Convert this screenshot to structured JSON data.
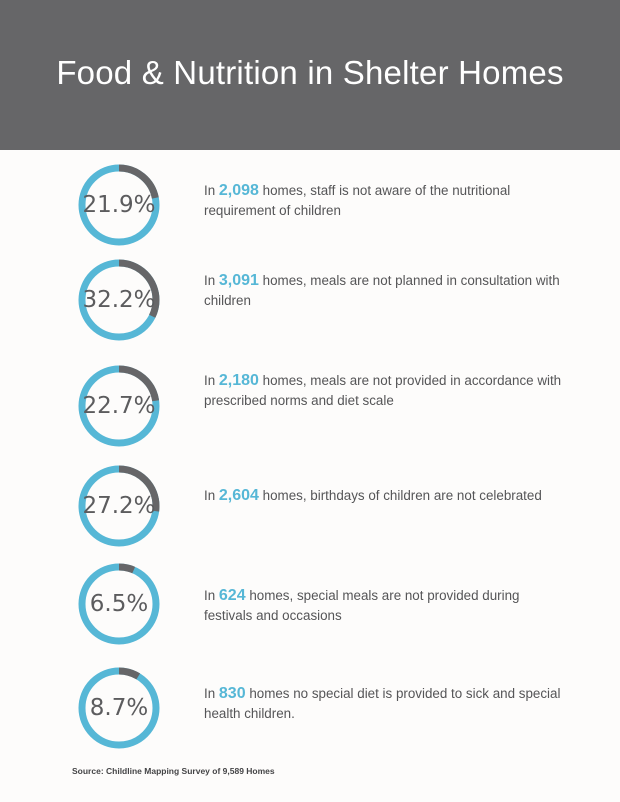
{
  "title": "Food & Nutrition in Shelter Homes",
  "source": "Source: Childline Mapping Survey of 9,589 Homes",
  "colors": {
    "ring": "#56b7d6",
    "ring_remainder": "#666668",
    "header": "#666668",
    "highlight": "#56b7d6"
  },
  "chart_data": {
    "type": "pie",
    "style": "donut",
    "items": [
      {
        "percent": 21.9,
        "label": "21.9%",
        "count": "2,098",
        "prefix": "In ",
        "text": " homes, staff is not aware of the nutritional requirement of children"
      },
      {
        "percent": 32.2,
        "label": "32.2%",
        "count": "3,091",
        "prefix": "In ",
        "text": " homes, meals are not planned in consultation with children"
      },
      {
        "percent": 22.7,
        "label": "22.7%",
        "count": "2,180",
        "prefix": "In ",
        "text": " homes, meals are not provided in accordance with prescribed norms and diet scale"
      },
      {
        "percent": 27.2,
        "label": "27.2%",
        "count": "2,604",
        "prefix": "In ",
        "text": " homes, birthdays of children are not celebrated"
      },
      {
        "percent": 6.5,
        "label": "6.5%",
        "count": "624",
        "prefix": "In ",
        "text": " homes, special meals are not provided during festivals and occasions"
      },
      {
        "percent": 8.7,
        "label": "8.7%",
        "count": "830",
        "prefix": "In ",
        "text": " homes no special diet is provided to sick and special health children."
      }
    ]
  }
}
